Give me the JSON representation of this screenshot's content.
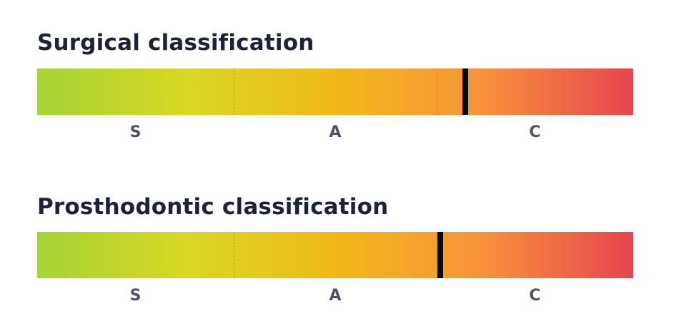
{
  "colors": {
    "gradient": [
      "#a6d436",
      "#d8d823",
      "#f2b91a",
      "#f7913a",
      "#e8444f"
    ],
    "marker": "#0b0b0b",
    "title": "#1c2337",
    "label": "#4e5269"
  },
  "chart_data": [
    {
      "type": "bar",
      "title": "Surgical classification",
      "categories": [
        "S",
        "A",
        "C"
      ],
      "boundaries": [
        0.33,
        0.67
      ],
      "marker_value": 0.718
    },
    {
      "type": "bar",
      "title": "Prosthodontic classification",
      "categories": [
        "S",
        "A",
        "C"
      ],
      "boundaries": [
        0.33,
        0.67
      ],
      "marker_value": 0.676
    }
  ]
}
